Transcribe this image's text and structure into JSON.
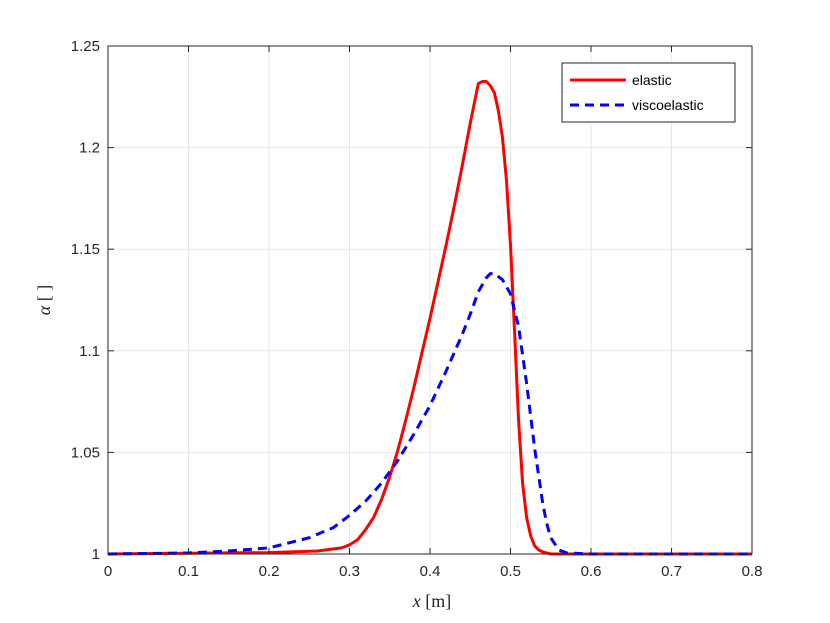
{
  "chart_data": {
    "type": "line",
    "title": "",
    "xlabel": {
      "var": "x",
      "unit": "[m]"
    },
    "ylabel": {
      "var": "α",
      "unit": "[ ]"
    },
    "xlim": [
      0,
      0.8
    ],
    "ylim": [
      1,
      1.25
    ],
    "xticks": [
      0,
      0.1,
      0.2,
      0.3,
      0.4,
      0.5,
      0.6,
      0.7,
      0.8
    ],
    "xtick_labels": [
      "0",
      "0.1",
      "0.2",
      "0.3",
      "0.4",
      "0.5",
      "0.6",
      "0.7",
      "0.8"
    ],
    "yticks": [
      1,
      1.05,
      1.1,
      1.15,
      1.2,
      1.25
    ],
    "ytick_labels": [
      "1",
      "1.05",
      "1.1",
      "1.15",
      "1.2",
      "1.25"
    ],
    "grid": true,
    "legend_position": "top-right",
    "series": [
      {
        "name": "elastic",
        "color": "#ff0000",
        "style": "solid",
        "x": [
          0,
          0.1,
          0.2,
          0.26,
          0.29,
          0.3,
          0.31,
          0.32,
          0.33,
          0.34,
          0.35,
          0.36,
          0.37,
          0.38,
          0.39,
          0.4,
          0.41,
          0.42,
          0.43,
          0.44,
          0.45,
          0.46,
          0.465,
          0.47,
          0.475,
          0.48,
          0.485,
          0.49,
          0.495,
          0.5,
          0.505,
          0.51,
          0.515,
          0.52,
          0.525,
          0.53,
          0.535,
          0.54,
          0.55,
          0.57,
          0.6,
          0.7,
          0.8
        ],
        "y": [
          1.0,
          1.0004,
          1.0007,
          1.0015,
          1.003,
          1.0045,
          1.007,
          1.012,
          1.018,
          1.027,
          1.038,
          1.051,
          1.066,
          1.082,
          1.099,
          1.116,
          1.134,
          1.152,
          1.171,
          1.191,
          1.212,
          1.2315,
          1.2325,
          1.2325,
          1.2305,
          1.227,
          1.218,
          1.205,
          1.184,
          1.152,
          1.11,
          1.066,
          1.035,
          1.018,
          1.009,
          1.004,
          1.002,
          1.001,
          1.0,
          1.0,
          1.0,
          1.0,
          1.0
        ]
      },
      {
        "name": "viscoelastic",
        "color": "#0000ff",
        "style": "dashed",
        "x": [
          0,
          0.1,
          0.15,
          0.2,
          0.25,
          0.28,
          0.3,
          0.32,
          0.34,
          0.36,
          0.38,
          0.4,
          0.42,
          0.44,
          0.45,
          0.46,
          0.47,
          0.475,
          0.48,
          0.49,
          0.5,
          0.51,
          0.52,
          0.53,
          0.54,
          0.545,
          0.55,
          0.56,
          0.57,
          0.6,
          0.7,
          0.8
        ],
        "y": [
          1.0,
          1.0005,
          1.0015,
          1.003,
          1.008,
          1.013,
          1.019,
          1.026,
          1.035,
          1.046,
          1.059,
          1.073,
          1.09,
          1.108,
          1.118,
          1.129,
          1.136,
          1.138,
          1.138,
          1.135,
          1.128,
          1.112,
          1.084,
          1.052,
          1.025,
          1.015,
          1.008,
          1.002,
          1.0005,
          1.0,
          1.0,
          1.0
        ]
      }
    ]
  }
}
